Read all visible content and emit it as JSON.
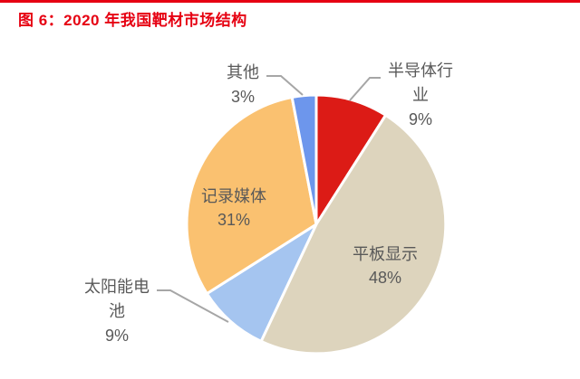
{
  "title": "图 6：2020 年我国靶材市场结构",
  "colors": {
    "accent_red": "#e60012",
    "label_text": "#595959",
    "leader_line": "#a6a6a6",
    "slice_border": "#ffffff",
    "background": "#ffffff"
  },
  "chart_data": {
    "type": "pie",
    "title": "2020 年我国靶材市场结构",
    "start_angle_deg": -90,
    "direction": "clockwise",
    "legend_position": "none",
    "categories": [
      "半导体行业",
      "平板显示",
      "太阳能电池",
      "记录媒体",
      "其他"
    ],
    "values": [
      9,
      48,
      9,
      31,
      3
    ],
    "unit": "%",
    "slices": [
      {
        "label": "半导体行业",
        "value": 9,
        "color": "#dc1b16",
        "display": "半导体行\n业\n9%",
        "label_placement": "outside"
      },
      {
        "label": "平板显示",
        "value": 48,
        "color": "#ddd4bd",
        "display": "平板显示\n48%",
        "label_placement": "inside"
      },
      {
        "label": "太阳能电池",
        "value": 9,
        "color": "#a5c5f0",
        "display": "太阳能电\n池\n9%",
        "label_placement": "outside"
      },
      {
        "label": "记录媒体",
        "value": 31,
        "color": "#fac170",
        "display": "记录媒体\n31%",
        "label_placement": "inside"
      },
      {
        "label": "其他",
        "value": 3,
        "color": "#6d96ec",
        "display": "其他\n3%",
        "label_placement": "outside"
      }
    ]
  }
}
